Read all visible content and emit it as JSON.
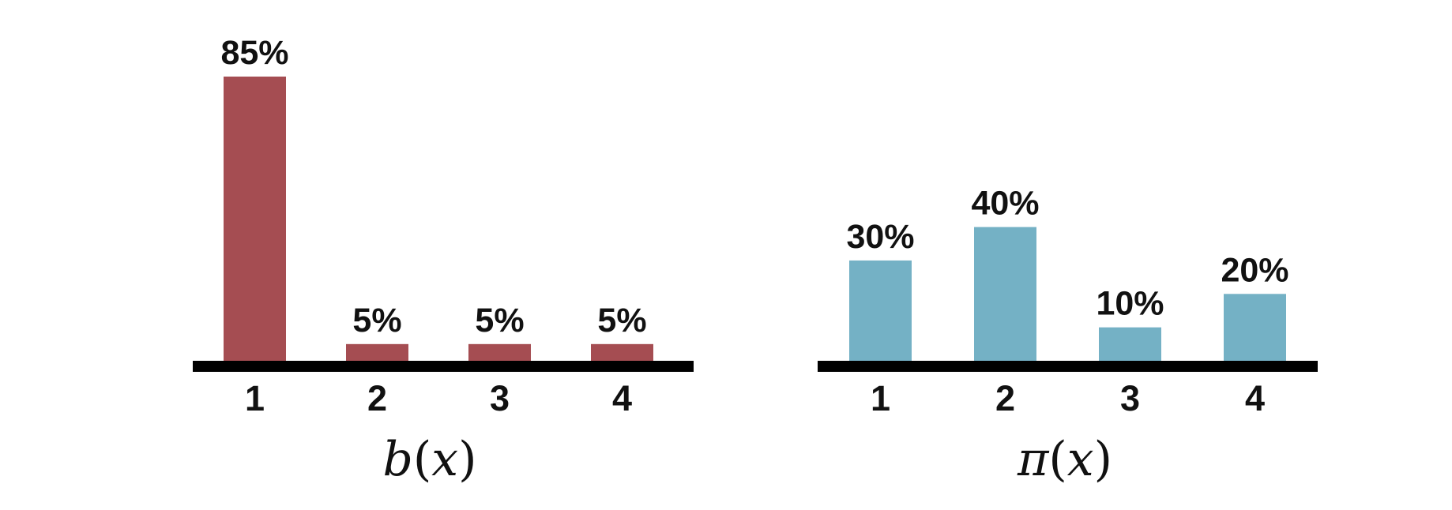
{
  "chart_data": [
    {
      "type": "bar",
      "categories": [
        "1",
        "2",
        "3",
        "4"
      ],
      "values": [
        85,
        5,
        5,
        5
      ],
      "value_labels": [
        "85%",
        "5%",
        "5%",
        "5%"
      ],
      "xlabel": "b(x)",
      "xlabel_parts": [
        "b",
        "(",
        "x",
        ")"
      ],
      "ylabel": "",
      "ylim": [
        0,
        85
      ],
      "grid": false,
      "color": "#a54d52"
    },
    {
      "type": "bar",
      "categories": [
        "1",
        "2",
        "3",
        "4"
      ],
      "values": [
        30,
        40,
        10,
        20
      ],
      "value_labels": [
        "30%",
        "40%",
        "10%",
        "20%"
      ],
      "xlabel": "π(x)",
      "xlabel_parts": [
        "π",
        "(",
        "x",
        ")"
      ],
      "ylabel": "",
      "ylim": [
        0,
        85
      ],
      "grid": false,
      "color": "#74b1c5"
    }
  ]
}
